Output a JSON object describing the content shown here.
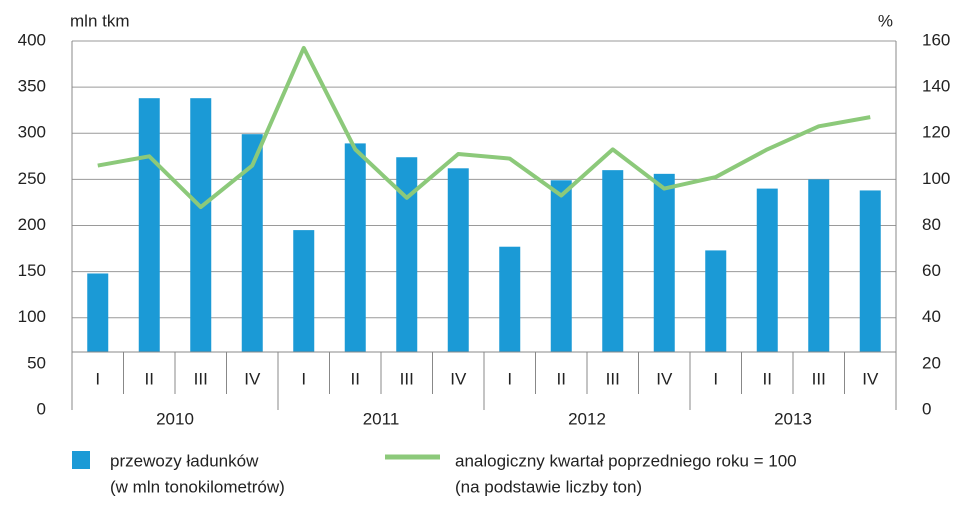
{
  "chart_data": {
    "type": "bar_line",
    "y_label": "mln tkm",
    "y2_label": "%",
    "categories": [
      "I",
      "II",
      "III",
      "IV",
      "I",
      "II",
      "III",
      "IV",
      "I",
      "II",
      "III",
      "IV",
      "I",
      "II",
      "III",
      "IV"
    ],
    "groups": [
      "2010",
      "2011",
      "2012",
      "2013"
    ],
    "ylim": [
      0,
      400
    ],
    "yticks": [
      0,
      50,
      100,
      150,
      200,
      250,
      300,
      350,
      400
    ],
    "y2lim": [
      0,
      160
    ],
    "y2ticks": [
      0,
      20,
      40,
      60,
      80,
      100,
      120,
      140,
      160
    ],
    "grid": true,
    "series": [
      {
        "name": "przewozy ładunków",
        "name_line2": "(w mln tonokilometrów)",
        "type": "bar",
        "color": "#1b9ad6",
        "values": [
          148,
          338,
          338,
          299,
          195,
          289,
          274,
          262,
          177,
          249,
          260,
          256,
          173,
          240,
          250,
          238
        ]
      },
      {
        "name": "analogiczny kwartał poprzedniego roku = 100",
        "name_line2": "(na podstawie liczby ton)",
        "type": "line",
        "axis": "y2",
        "color": "#8cc97a",
        "values": [
          106,
          110,
          88,
          106,
          157,
          113,
          92,
          111,
          109,
          93,
          113,
          96,
          101,
          113,
          123,
          127
        ]
      }
    ]
  }
}
